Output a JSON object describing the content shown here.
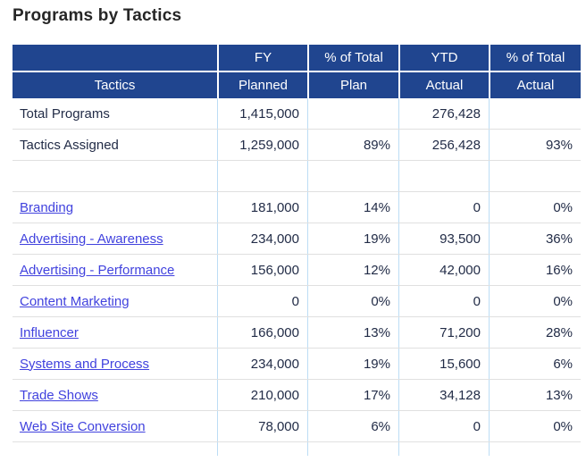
{
  "title": "Programs by Tactics",
  "colors": {
    "header_bg": "#20458F",
    "header_text": "#FFFFFF",
    "body_text": "#222C47",
    "link": "#4142DE",
    "grid_vertical": "#BCDDF5",
    "grid_horizontal": "#E0E0E0"
  },
  "table": {
    "header_row1": [
      "",
      "FY",
      "% of Total",
      "YTD",
      "% of Total"
    ],
    "header_row2": [
      "Tactics",
      "Planned",
      "Plan",
      "Actual",
      "Actual"
    ],
    "rows": [
      {
        "tactic": "Total Programs",
        "link": false,
        "fy_planned": "1,415,000",
        "pct_of_total_plan": "",
        "ytd_actual": "276,428",
        "pct_of_total_actual": ""
      },
      {
        "tactic": "Tactics Assigned",
        "link": false,
        "fy_planned": "1,259,000",
        "pct_of_total_plan": "89%",
        "ytd_actual": "256,428",
        "pct_of_total_actual": "93%"
      },
      {
        "tactic": "",
        "link": false,
        "fy_planned": "",
        "pct_of_total_plan": "",
        "ytd_actual": "",
        "pct_of_total_actual": ""
      },
      {
        "tactic": "Branding",
        "link": true,
        "fy_planned": "181,000",
        "pct_of_total_plan": "14%",
        "ytd_actual": "0",
        "pct_of_total_actual": "0%"
      },
      {
        "tactic": "Advertising - Awareness",
        "link": true,
        "fy_planned": "234,000",
        "pct_of_total_plan": "19%",
        "ytd_actual": "93,500",
        "pct_of_total_actual": "36%"
      },
      {
        "tactic": "Advertising - Performance",
        "link": true,
        "fy_planned": "156,000",
        "pct_of_total_plan": "12%",
        "ytd_actual": "42,000",
        "pct_of_total_actual": "16%"
      },
      {
        "tactic": "Content Marketing",
        "link": true,
        "fy_planned": "0",
        "pct_of_total_plan": "0%",
        "ytd_actual": "0",
        "pct_of_total_actual": "0%"
      },
      {
        "tactic": "Influencer",
        "link": true,
        "fy_planned": "166,000",
        "pct_of_total_plan": "13%",
        "ytd_actual": "71,200",
        "pct_of_total_actual": "28%"
      },
      {
        "tactic": "Systems and Process",
        "link": true,
        "fy_planned": "234,000",
        "pct_of_total_plan": "19%",
        "ytd_actual": "15,600",
        "pct_of_total_actual": "6%"
      },
      {
        "tactic": "Trade Shows",
        "link": true,
        "fy_planned": "210,000",
        "pct_of_total_plan": "17%",
        "ytd_actual": "34,128",
        "pct_of_total_actual": "13%"
      },
      {
        "tactic": "Web Site Conversion",
        "link": true,
        "fy_planned": "78,000",
        "pct_of_total_plan": "6%",
        "ytd_actual": "0",
        "pct_of_total_actual": "0%"
      }
    ]
  },
  "chart_data": {
    "type": "table",
    "title": "Programs by Tactics",
    "columns": [
      "Tactics",
      "FY Planned",
      "% of Total Plan",
      "YTD Actual",
      "% of Total Actual"
    ],
    "rows": [
      [
        "Total Programs",
        1415000,
        null,
        276428,
        null
      ],
      [
        "Tactics Assigned",
        1259000,
        89,
        256428,
        93
      ],
      [
        "Branding",
        181000,
        14,
        0,
        0
      ],
      [
        "Advertising - Awareness",
        234000,
        19,
        93500,
        36
      ],
      [
        "Advertising - Performance",
        156000,
        12,
        42000,
        16
      ],
      [
        "Content Marketing",
        0,
        0,
        0,
        0
      ],
      [
        "Influencer",
        166000,
        13,
        71200,
        28
      ],
      [
        "Systems and Process",
        234000,
        19,
        15600,
        6
      ],
      [
        "Trade Shows",
        210000,
        17,
        34128,
        13
      ],
      [
        "Web Site Conversion",
        78000,
        6,
        0,
        0
      ]
    ],
    "percent_unit": "%",
    "layout": "two-row blue header, tactic names are links, numeric columns right-aligned"
  }
}
